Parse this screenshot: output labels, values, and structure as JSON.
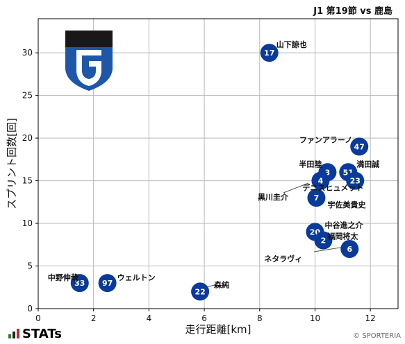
{
  "header": {
    "match": "J1 第19節 vs 鹿島"
  },
  "footer": {
    "brand": "STATs",
    "credit": "© SPORTERIA"
  },
  "colors": {
    "marker": "#0a3a9a",
    "logo_top": "#1a1718",
    "logo_shield": "#1f57a8",
    "grid": "#b7b7b7"
  },
  "chart_data": {
    "type": "scatter",
    "xlabel": "走行距離[km]",
    "ylabel": "スプリント回数[回]",
    "xlim": [
      0,
      13
    ],
    "ylim": [
      0,
      34
    ],
    "xticks": [
      0,
      2,
      4,
      6,
      8,
      10,
      12
    ],
    "yticks": [
      0,
      5,
      10,
      15,
      20,
      25,
      30
    ],
    "grid": true,
    "points": [
      {
        "number": "17",
        "name": "山下諒也",
        "x": 8.35,
        "y": 30
      },
      {
        "number": "47",
        "name": "ファンアラーノ",
        "x": 11.6,
        "y": 19
      },
      {
        "number": "3",
        "name": "半田陸",
        "x": 10.45,
        "y": 16
      },
      {
        "number": "51",
        "name": "満田誠",
        "x": 11.2,
        "y": 16
      },
      {
        "number": "4",
        "name": "デニスヒュメット",
        "x": 10.2,
        "y": 15
      },
      {
        "number": "23",
        "name": "",
        "x": 11.45,
        "y": 15
      },
      {
        "number": "7",
        "name": "宇佐美貴史",
        "x": 10.05,
        "y": 13
      },
      {
        "number": "20",
        "name": "中谷進之介",
        "x": 10,
        "y": 9
      },
      {
        "number": "2",
        "name": "福岡将太",
        "x": 10.3,
        "y": 8
      },
      {
        "number": "6",
        "name": "ネタラヴィ",
        "x": 11.25,
        "y": 7
      },
      {
        "number": "33",
        "name": "中野伸哉",
        "x": 1.5,
        "y": 3
      },
      {
        "number": "97",
        "name": "ウェルトン",
        "x": 2.5,
        "y": 3
      },
      {
        "number": "22",
        "name": "森純",
        "x": 5.85,
        "y": 2
      },
      {
        "number": "",
        "name": "黒川圭介",
        "x": 0,
        "y": 0
      }
    ]
  }
}
